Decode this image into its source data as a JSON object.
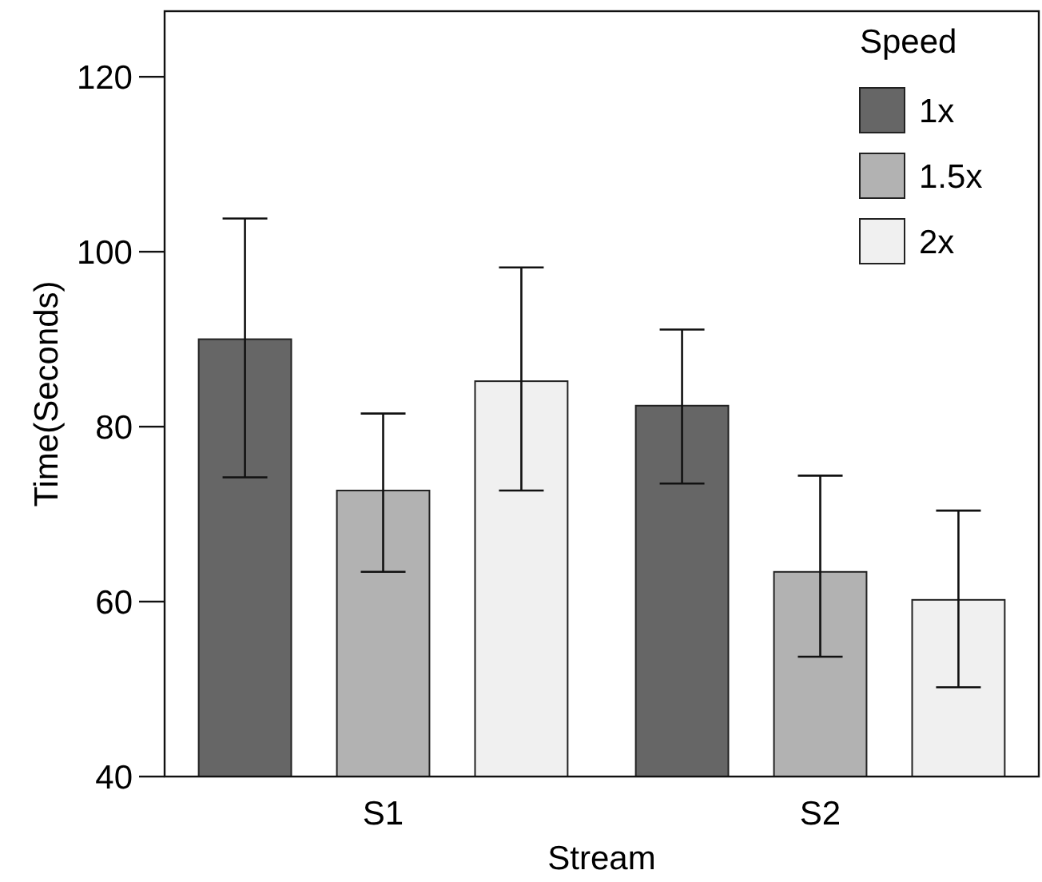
{
  "chart_data": {
    "type": "bar",
    "xlabel": "Stream",
    "ylabel": "Time(Seconds)",
    "legend_title": "Speed",
    "legend": "top right",
    "categories": [
      "S1",
      "S2"
    ],
    "series": [
      {
        "name": "1x",
        "color": "#666666",
        "values": [
          90,
          82.4
        ],
        "errors": [
          [
            74.2,
            103.8
          ],
          [
            73.5,
            91.1
          ]
        ]
      },
      {
        "name": "1.5x",
        "color": "#b2b2b2",
        "values": [
          72.7,
          63.4
        ],
        "errors": [
          [
            63.4,
            81.5
          ],
          [
            53.7,
            74.4
          ]
        ]
      },
      {
        "name": "2x",
        "color": "#f0f0f0",
        "values": [
          85.2,
          60.2
        ],
        "errors": [
          [
            72.7,
            98.2
          ],
          [
            50.2,
            70.4
          ]
        ]
      }
    ],
    "ylim": [
      40,
      127.5
    ],
    "yticks": [
      40,
      60,
      80,
      100,
      120
    ],
    "grid": false
  }
}
